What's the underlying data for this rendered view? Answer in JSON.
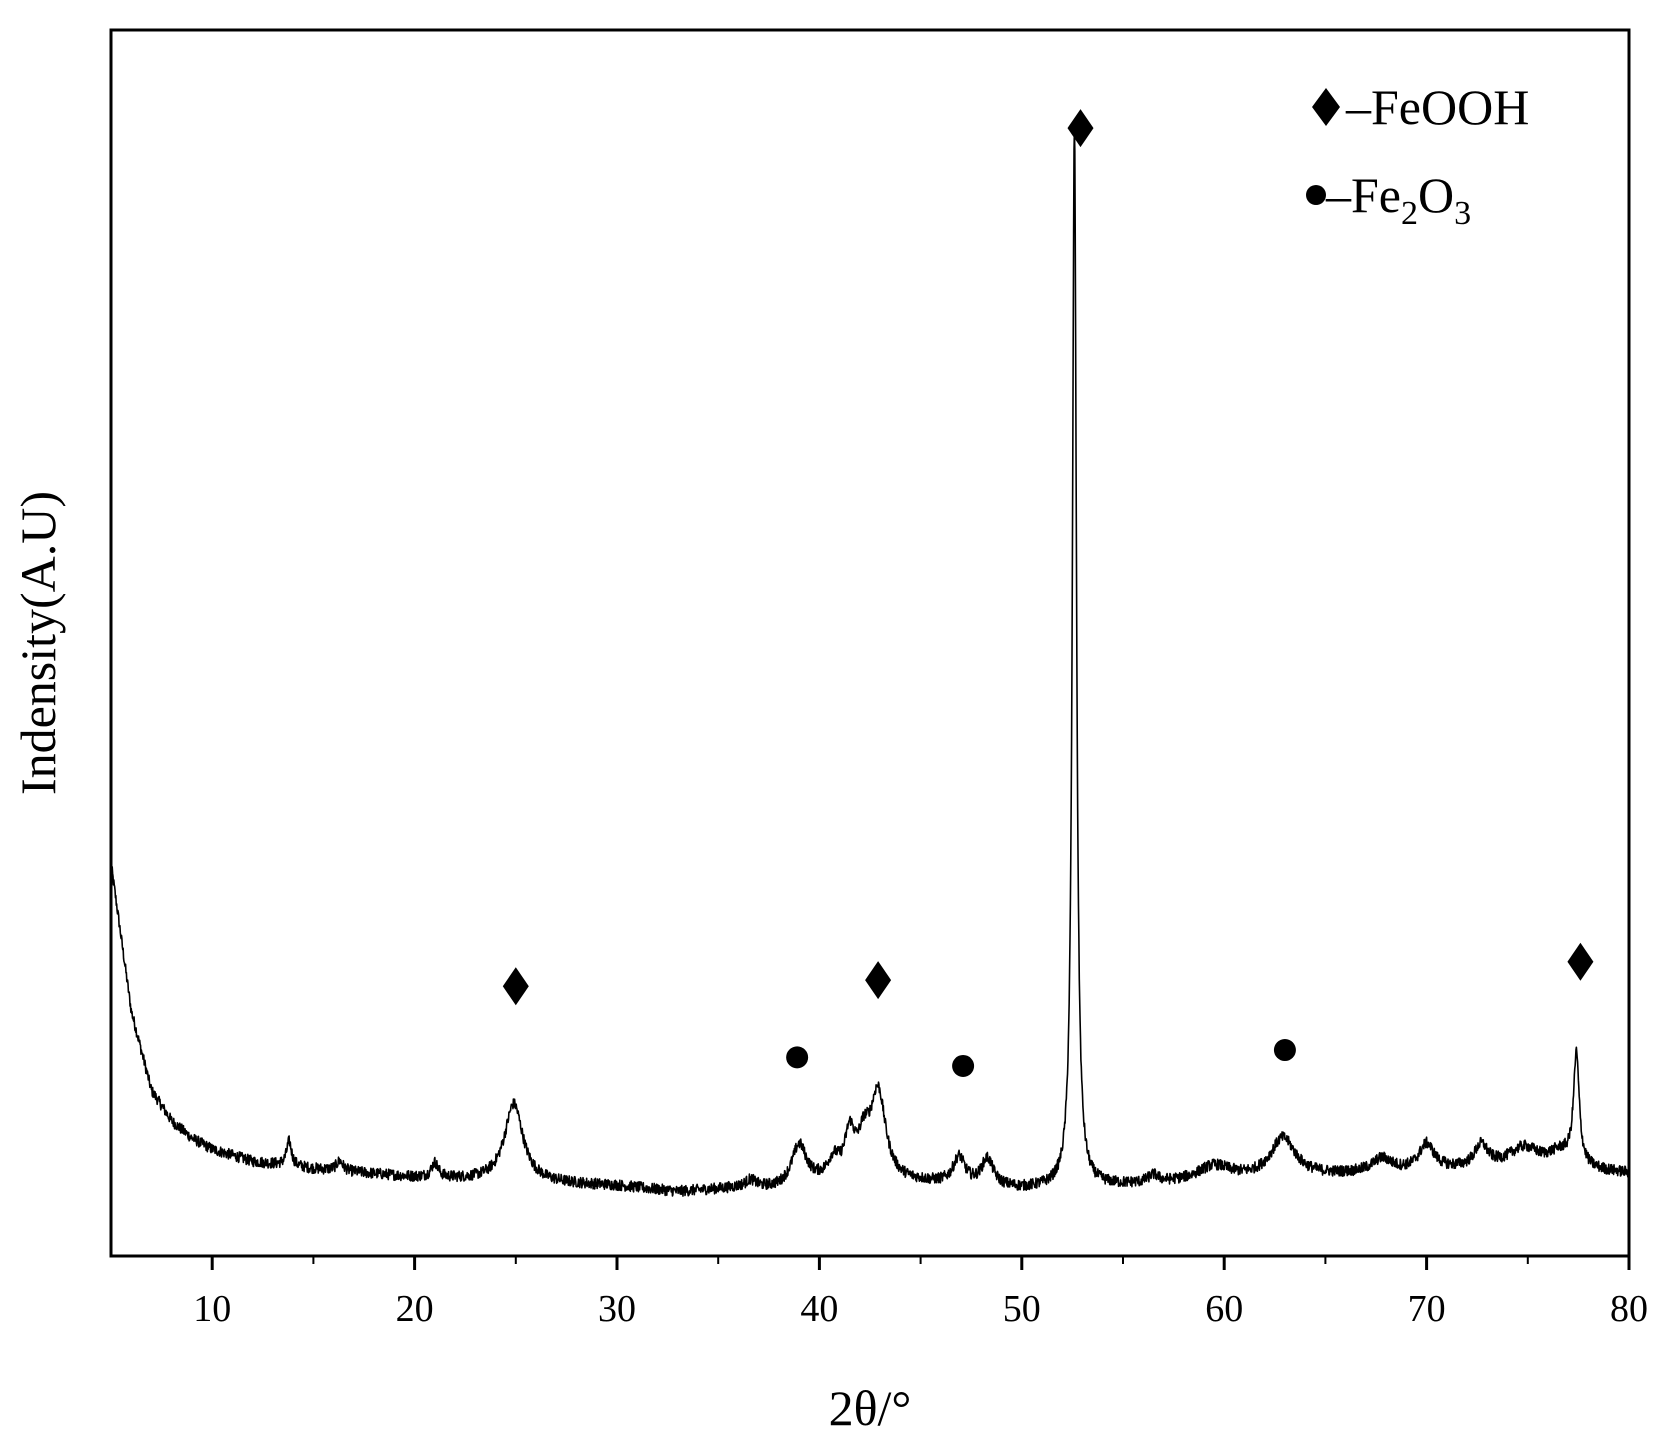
{
  "chart_data": {
    "type": "line",
    "title": "",
    "xlabel": "2θ/°",
    "ylabel": "Indensity(A.U)",
    "xlim": [
      5,
      80
    ],
    "ylim": [
      0,
      100
    ],
    "x_ticks": [
      10,
      20,
      30,
      40,
      50,
      60,
      70,
      80
    ],
    "x_minor_ticks": [
      15,
      25,
      35,
      45,
      55,
      65,
      75
    ],
    "y_ticks_shown": false,
    "grid": false,
    "legend_placement": "top-right",
    "legend": [
      {
        "marker": "diamond",
        "label_prefix": "–FeOOH",
        "label": "–FeOOH"
      },
      {
        "marker": "circle",
        "label": "–Fe2O3",
        "parts": [
          "–Fe",
          "2",
          "O",
          "3"
        ]
      }
    ],
    "series": [
      {
        "color": "#000000",
        "peaks": [
          {
            "x": 13.8,
            "height": 2.0,
            "width": 0.15
          },
          {
            "x": 16.3,
            "height": 0.8,
            "width": 0.2
          },
          {
            "x": 21.0,
            "height": 1.2,
            "width": 0.2
          },
          {
            "x": 24.9,
            "height": 6.4,
            "width": 0.55
          },
          {
            "x": 36.6,
            "height": 0.6,
            "width": 0.3
          },
          {
            "x": 39.0,
            "height": 3.3,
            "width": 0.45
          },
          {
            "x": 40.7,
            "height": 1.6,
            "width": 0.35
          },
          {
            "x": 41.5,
            "height": 3.6,
            "width": 0.3
          },
          {
            "x": 42.2,
            "height": 2.8,
            "width": 0.35
          },
          {
            "x": 42.9,
            "height": 7.2,
            "width": 0.45
          },
          {
            "x": 46.9,
            "height": 2.2,
            "width": 0.35
          },
          {
            "x": 48.3,
            "height": 2.2,
            "width": 0.35
          },
          {
            "x": 52.6,
            "height": 86.5,
            "width": 0.12
          },
          {
            "x": 56.5,
            "height": 0.6,
            "width": 0.3
          },
          {
            "x": 59.5,
            "height": 1.2,
            "width": 1.0
          },
          {
            "x": 62.9,
            "height": 3.2,
            "width": 0.75
          },
          {
            "x": 67.8,
            "height": 1.1,
            "width": 0.6
          },
          {
            "x": 70.0,
            "height": 2.1,
            "width": 0.45
          },
          {
            "x": 72.7,
            "height": 1.8,
            "width": 0.4
          },
          {
            "x": 74.8,
            "height": 1.5,
            "width": 0.9
          },
          {
            "x": 76.6,
            "height": 1.2,
            "width": 0.7
          },
          {
            "x": 77.4,
            "height": 9.0,
            "width": 0.17
          }
        ],
        "baseline": [
          [
            5,
            32.0
          ],
          [
            6,
            20.0
          ],
          [
            7,
            13.5
          ],
          [
            8,
            11.0
          ],
          [
            9,
            9.6
          ],
          [
            10,
            8.7
          ],
          [
            12,
            7.7
          ],
          [
            15,
            7.1
          ],
          [
            20,
            6.4
          ],
          [
            25,
            6.0
          ],
          [
            30,
            5.7
          ],
          [
            33,
            5.2
          ],
          [
            36,
            5.5
          ],
          [
            38,
            5.4
          ],
          [
            40,
            5.8
          ],
          [
            45,
            5.9
          ],
          [
            50,
            5.4
          ],
          [
            55,
            5.7
          ],
          [
            60,
            6.1
          ],
          [
            65,
            6.5
          ],
          [
            70,
            6.9
          ],
          [
            75,
            7.2
          ],
          [
            80,
            6.7
          ]
        ]
      }
    ],
    "annotations": [
      {
        "marker": "diamond",
        "x": 25.0,
        "y": 22.0,
        "phase": "FeOOH"
      },
      {
        "marker": "diamond",
        "x": 42.9,
        "y": 22.5,
        "phase": "FeOOH"
      },
      {
        "marker": "diamond",
        "x": 52.9,
        "y": 92.0,
        "phase": "FeOOH"
      },
      {
        "marker": "diamond",
        "x": 77.6,
        "y": 24.0,
        "phase": "FeOOH"
      },
      {
        "marker": "circle",
        "x": 38.9,
        "y": 16.2,
        "phase": "Fe2O3"
      },
      {
        "marker": "circle",
        "x": 47.1,
        "y": 15.5,
        "phase": "Fe2O3"
      },
      {
        "marker": "circle",
        "x": 63.0,
        "y": 16.8,
        "phase": "Fe2O3"
      }
    ]
  }
}
